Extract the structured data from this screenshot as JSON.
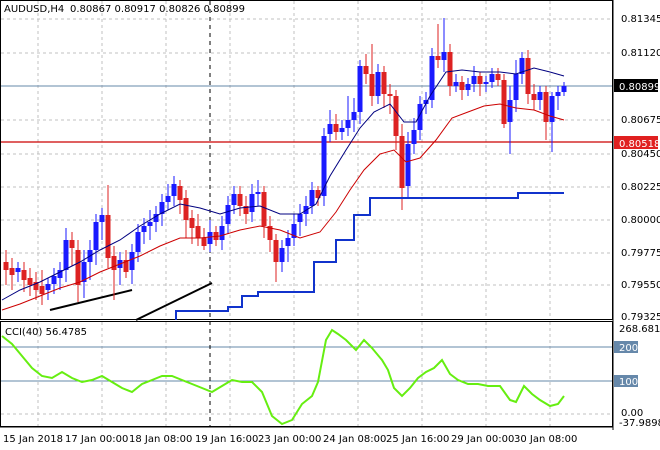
{
  "header": {
    "symbol": "AUDUSD,H4",
    "ohlc": "0.80867 0.80917 0.80826 0.80899"
  },
  "price_axis": {
    "ticks": [
      "0.81345",
      "0.81120",
      "0.80675",
      "0.80450",
      "0.80225",
      "0.80000",
      "0.79775",
      "0.79550",
      "0.79325"
    ],
    "current_price": "0.80899",
    "level_price": "0.80518"
  },
  "indicator": {
    "title": "CCI(40) 56.4785",
    "max_label": "268.6814",
    "min_label": "-37.9898",
    "levels": [
      "200",
      "100",
      "0.00"
    ]
  },
  "time_axis": {
    "labels": [
      "15 Jan 2018",
      "17 Jan 00:00",
      "18 Jan 08:00",
      "19 Jan 16:00",
      "23 Jan 00:00",
      "24 Jan 08:00",
      "25 Jan 16:00",
      "29 Jan 00:00",
      "30 Jan 08:00"
    ]
  },
  "colors": {
    "bull": "#1a1aff",
    "bear": "#dd2222",
    "ma_fast": "#000080",
    "ma_slow": "#cc0000",
    "channel": "#1133cc",
    "cci": "#66ee11",
    "grid": "#c0c0c0",
    "price_line": "#6688aa",
    "level_line": "#cc0000",
    "level_box": "#e02020"
  }
}
